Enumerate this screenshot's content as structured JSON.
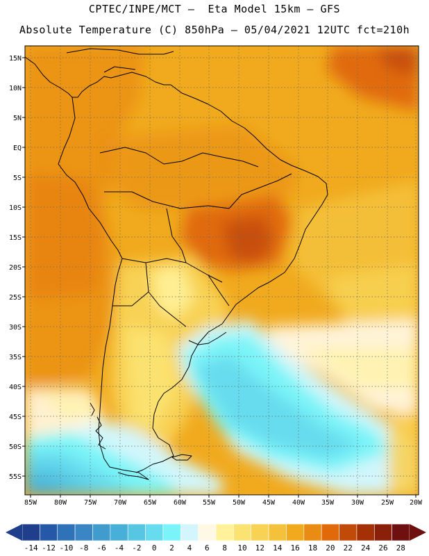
{
  "header": {
    "title_line1": "CPTEC/INPE/MCT –  Eta Model 15km – GFS",
    "title_line2": "Absolute Temperature (C) 850hPa – 05/04/2021 12UTC fct=210h"
  },
  "map": {
    "lat_labels": [
      "15N",
      "10N",
      "5N",
      "EQ",
      "5S",
      "10S",
      "15S",
      "20S",
      "25S",
      "30S",
      "35S",
      "40S",
      "45S",
      "50S",
      "55S"
    ],
    "lon_labels": [
      "85W",
      "80W",
      "75W",
      "70W",
      "65W",
      "60W",
      "55W",
      "50W",
      "45W",
      "40W",
      "35W",
      "30W",
      "25W",
      "20W"
    ]
  },
  "colorbar": {
    "labels": [
      "-14",
      "-12",
      "-10",
      "-8",
      "-6",
      "-4",
      "-2",
      "0",
      "2",
      "4",
      "6",
      "8",
      "10",
      "12",
      "14",
      "16",
      "18",
      "20",
      "22",
      "24",
      "26",
      "28"
    ],
    "colors": [
      "#1f3e8c",
      "#2558a6",
      "#2f72b8",
      "#3a86c4",
      "#3f9ccc",
      "#48b0d8",
      "#56c6e2",
      "#66dcee",
      "#7af4f8",
      "#d2f6fb",
      "#fff8e4",
      "#fff29a",
      "#fbe372",
      "#f8d255",
      "#f4c13a",
      "#f1aa1e",
      "#ea8c14",
      "#e06a0a",
      "#c24a08",
      "#a63006",
      "#8a1f0a",
      "#6e1010"
    ]
  }
}
